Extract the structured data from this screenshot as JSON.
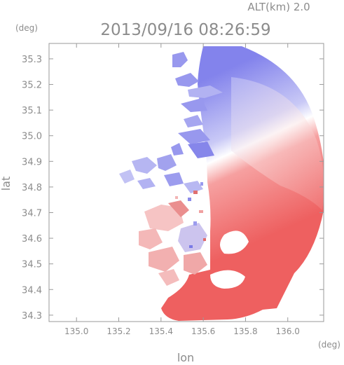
{
  "chart_data": {
    "type": "heatmap",
    "title": "2013/09/16 08:26:59",
    "subtitle": "ALT(km) 2.0",
    "xlabel": "lon",
    "ylabel": "lat",
    "x_unit": "(deg)",
    "y_unit": "(deg)",
    "xlim": [
      134.87,
      136.17
    ],
    "ylim": [
      34.275,
      35.36
    ],
    "x_ticks": [
      "135.0",
      "135.2",
      "135.4",
      "135.6",
      "135.8",
      "136.0"
    ],
    "x_tick_values": [
      135.0,
      135.2,
      135.4,
      135.6,
      135.8,
      136.0
    ],
    "y_ticks": [
      "34.3",
      "34.4",
      "34.5",
      "34.6",
      "34.7",
      "34.8",
      "34.9",
      "35.0",
      "35.1",
      "35.2",
      "35.3"
    ],
    "y_tick_values": [
      34.3,
      34.4,
      34.5,
      34.6,
      34.7,
      34.8,
      34.9,
      35.0,
      35.1,
      35.2,
      35.3
    ],
    "field": {
      "kind": "doppler-velocity",
      "approaching_color": "#6f6fe8",
      "receding_color": "#ee5a5a",
      "zero_color": "#ffffff"
    },
    "grid": false
  }
}
